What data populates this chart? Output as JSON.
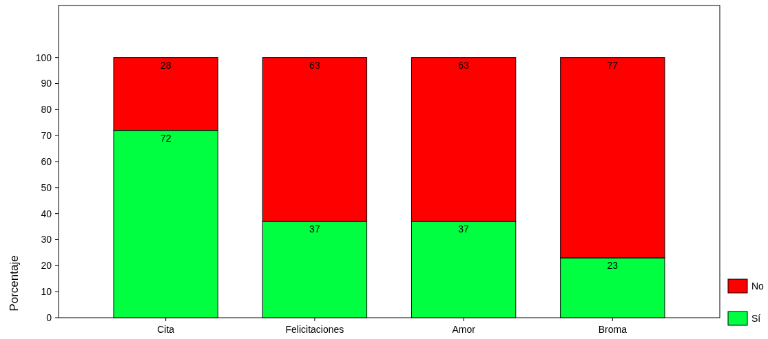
{
  "chart_data": {
    "type": "bar",
    "stacked": true,
    "ylabel": "Porcentaje",
    "categories": [
      "Cita",
      "Felicitaciones",
      "Amor",
      "Broma"
    ],
    "series": [
      {
        "name": "Sí",
        "color": "#00ff40",
        "values": [
          72,
          37,
          37,
          23
        ]
      },
      {
        "name": "No",
        "color": "#ff0000",
        "values": [
          28,
          63,
          63,
          77
        ]
      }
    ],
    "ylim": [
      0,
      120
    ],
    "yticks": [
      0,
      10,
      20,
      30,
      40,
      50,
      60,
      70,
      80,
      90,
      100
    ],
    "data_labels": true,
    "legend": "bottom right",
    "grid": false
  }
}
